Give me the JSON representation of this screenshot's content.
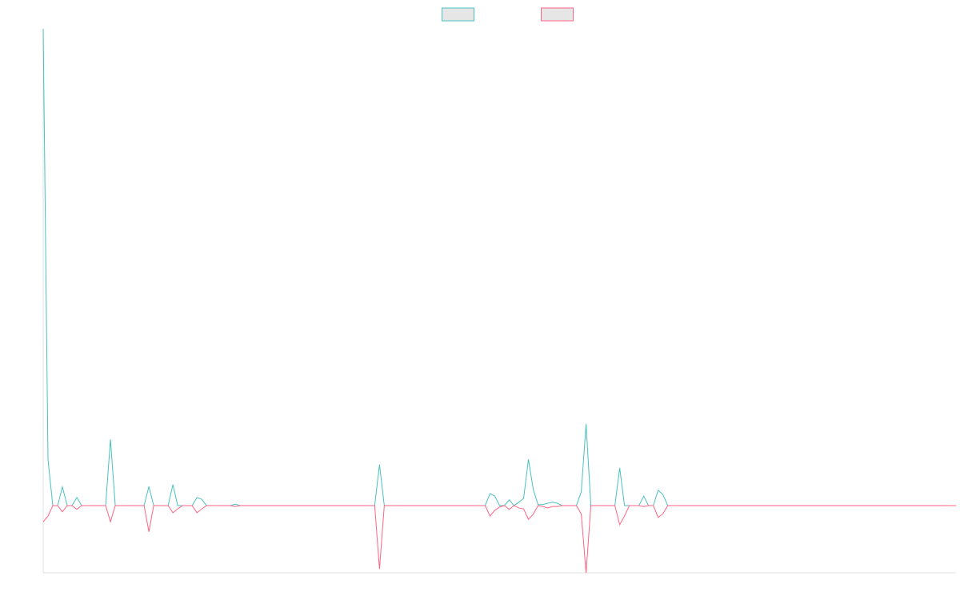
{
  "chart_data": {
    "type": "line",
    "series": [
      {
        "color": "#4bc0c0",
        "values": [
          100,
          9.6,
          0,
          0,
          3.9,
          0,
          0,
          1.7,
          0,
          0,
          0,
          0,
          0,
          0,
          13.9,
          0,
          0,
          0,
          0,
          0,
          0,
          0,
          4.0,
          0,
          0,
          0,
          0,
          4.4,
          0,
          0,
          0,
          0,
          1.7,
          1.3,
          0,
          0,
          0,
          0,
          0,
          0,
          0.3,
          0,
          0,
          0,
          0,
          0,
          0,
          0,
          0,
          0,
          0,
          0,
          0,
          0,
          0,
          0,
          0,
          0,
          0,
          0,
          0,
          0,
          0,
          0,
          0,
          0,
          0,
          0,
          0,
          0,
          8.6,
          0,
          0,
          0,
          0,
          0,
          0,
          0,
          0,
          0,
          0,
          0,
          0,
          0,
          0,
          0,
          0,
          0,
          0,
          0,
          0,
          0,
          0,
          2.5,
          2.0,
          0,
          0,
          1.2,
          0,
          0.7,
          1.5,
          9.7,
          3.4,
          0.2,
          0.2,
          0.5,
          0.7,
          0.5,
          0,
          0,
          0,
          0,
          2.9,
          17.1,
          0,
          0,
          0,
          0,
          0,
          0,
          7.9,
          0,
          0,
          0,
          0,
          2.0,
          0,
          0,
          3.2,
          2.3,
          0,
          0,
          0,
          0,
          0,
          0,
          0,
          0,
          0,
          0,
          0,
          0,
          0,
          0,
          0,
          0,
          0,
          0,
          0,
          0,
          0,
          0,
          0,
          0,
          0,
          0,
          0,
          0,
          0,
          0,
          0,
          0,
          0,
          0,
          0,
          0,
          0,
          0,
          0,
          0,
          0,
          0,
          0,
          0,
          0,
          0,
          0,
          0,
          0,
          0,
          0,
          0,
          0,
          0,
          0,
          0,
          0,
          0,
          0,
          0,
          0
        ]
      },
      {
        "color": "#ff6384",
        "values": [
          -3.4,
          -2.2,
          0,
          0,
          -1.3,
          0,
          0,
          -0.8,
          0,
          0,
          0,
          0,
          0,
          0,
          -3.4,
          0,
          0,
          0,
          0,
          0,
          0,
          0,
          -5.5,
          0,
          0,
          0,
          0,
          -1.5,
          -0.7,
          0,
          0,
          0,
          -1.5,
          -0.7,
          0,
          0,
          0,
          0,
          0,
          0,
          -0.2,
          0,
          0,
          0,
          0,
          0,
          0,
          0,
          0,
          0,
          0,
          0,
          0,
          0,
          0,
          0,
          0,
          0,
          0,
          0,
          0,
          0,
          0,
          0,
          0,
          0,
          0,
          0,
          0,
          0,
          -13.3,
          0,
          0,
          0,
          0,
          0,
          0,
          0,
          0,
          0,
          0,
          0,
          0,
          0,
          0,
          0,
          0,
          0,
          0,
          0,
          0,
          0,
          0,
          -2.2,
          -1.0,
          -0.3,
          0,
          -0.8,
          0,
          -0.5,
          -0.7,
          -2.9,
          -1.8,
          0,
          -0.2,
          -0.5,
          -0.2,
          -0.2,
          0,
          0,
          0,
          0,
          -1.8,
          -14.1,
          0,
          0,
          0,
          0,
          0,
          0,
          -4.0,
          -2.2,
          0,
          0,
          0,
          -0.2,
          0,
          0,
          -2.5,
          -1.7,
          0,
          0,
          0,
          0,
          0,
          0,
          0,
          0,
          0,
          0,
          0,
          0,
          0,
          0,
          0,
          0,
          0,
          0,
          0,
          0,
          0,
          0,
          0,
          0,
          0,
          0,
          0,
          0,
          0,
          0,
          0,
          0,
          0,
          0,
          0,
          0,
          0,
          0,
          0,
          0,
          0,
          0,
          0,
          0,
          0,
          0,
          0,
          0,
          0,
          0,
          0,
          0,
          0,
          0,
          0,
          0,
          0,
          0,
          0,
          0,
          0
        ]
      }
    ],
    "ylim": [
      -14.1,
      100
    ],
    "legend": "top"
  }
}
